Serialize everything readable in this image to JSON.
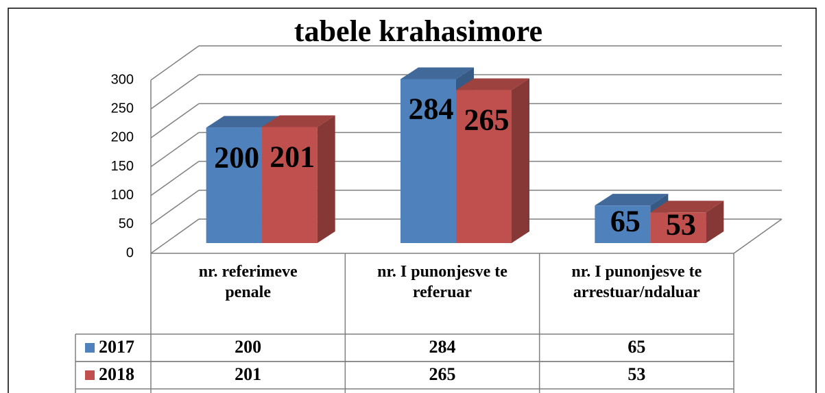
{
  "chart_data": {
    "type": "bar3d",
    "title": "tabele krahasimore",
    "categories": [
      "nr. referimeve penale",
      "nr. I punonjesve te referuar",
      "nr. I punonjesve te arrestuar/ndaluar"
    ],
    "series": [
      {
        "name": "2017",
        "color": "#4f81bd",
        "values": [
          200,
          284,
          65
        ]
      },
      {
        "name": "2018",
        "color": "#c0504d",
        "values": [
          201,
          265,
          53
        ]
      }
    ],
    "ylim": [
      0,
      300
    ],
    "yticks": [
      0,
      50,
      100,
      150,
      200,
      250,
      300
    ],
    "grid": true,
    "data_table": true
  }
}
